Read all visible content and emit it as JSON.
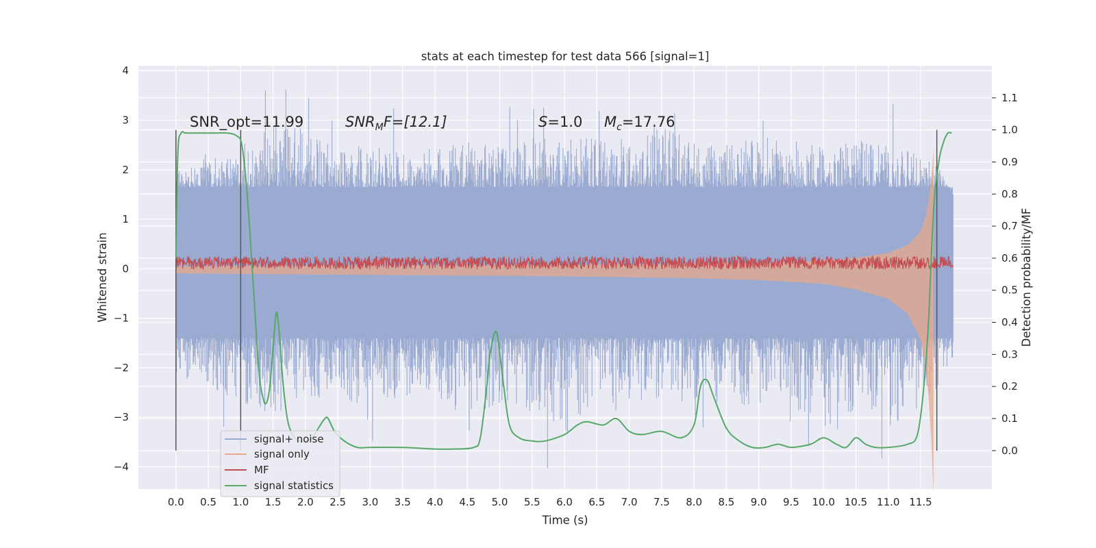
{
  "chart_data": {
    "type": "line",
    "title": "stats at each timestep for test data 566 [signal=1]",
    "xlabel": "Time (s)",
    "ylabel": "Whitened strain",
    "ylabel_right": "Detection probability/MF",
    "xlim": [
      -0.58,
      12.6
    ],
    "ylim": [
      -4.45,
      4.1
    ],
    "ylim_right": [
      -0.12,
      1.2
    ],
    "x_ticks": [
      "0.0",
      "0.5",
      "1.0",
      "1.5",
      "2.0",
      "2.5",
      "3.0",
      "3.5",
      "4.0",
      "4.5",
      "5.0",
      "5.5",
      "6.0",
      "6.5",
      "7.0",
      "7.5",
      "8.0",
      "8.5",
      "9.0",
      "9.5",
      "10.0",
      "10.5",
      "11.0",
      "11.5"
    ],
    "y_ticks": [
      4,
      3,
      2,
      1,
      0,
      -1,
      -2,
      -3,
      -4
    ],
    "y_tick_labels": [
      "4",
      "3",
      "2",
      "1",
      "0",
      "−1",
      "−2",
      "−3",
      "−4"
    ],
    "y_right_ticks": [
      1.1,
      1.0,
      0.9,
      0.8,
      0.7,
      0.6,
      0.5,
      0.4,
      0.3,
      0.2,
      0.1,
      0.0
    ],
    "y_right_tick_labels": [
      "1.1",
      "1.0",
      "0.9",
      "0.8",
      "0.7",
      "0.6",
      "0.5",
      "0.4",
      "0.3",
      "0.2",
      "0.1",
      "0.0"
    ],
    "grid": true,
    "legend_position": "lower-left",
    "annotations": {
      "snr_opt": "SNR_opt=11.99",
      "snr_mf_sym": "SNR",
      "snr_mf_sub": "M",
      "snr_mf_rest": "F=[12.1]",
      "s_sym": "S",
      "s_rest": "=1.0",
      "mc_sym": "M",
      "mc_sub": "c",
      "mc_rest": "=17.76"
    },
    "vertical_markers_x": [
      0.0,
      1.0,
      11.75
    ],
    "series": [
      {
        "name": "signal+ noise",
        "color": "#9aaad0",
        "envelope_x": [
          0.0,
          0.5,
          1.0,
          1.5,
          2.0,
          2.5,
          3.0,
          3.5,
          4.0,
          4.5,
          5.0,
          5.5,
          6.0,
          6.5,
          7.0,
          7.5,
          8.0,
          8.5,
          9.0,
          9.5,
          10.0,
          10.5,
          11.0,
          11.5,
          12.0
        ],
        "envelope_upper": [
          2.0,
          2.3,
          2.2,
          3.0,
          2.8,
          2.4,
          2.5,
          2.3,
          2.5,
          2.6,
          2.5,
          2.7,
          2.6,
          2.7,
          2.6,
          2.9,
          2.6,
          2.5,
          2.7,
          2.6,
          2.5,
          2.6,
          2.5,
          2.7,
          1.5
        ],
        "envelope_lower": [
          -2.2,
          -2.5,
          -2.8,
          -3.0,
          -2.7,
          -2.6,
          -2.9,
          -2.6,
          -2.5,
          -3.3,
          -2.8,
          -2.9,
          -3.4,
          -2.7,
          -2.8,
          -2.6,
          -2.9,
          -2.7,
          -2.8,
          -2.9,
          -3.6,
          -3.0,
          -3.2,
          -2.8,
          -2.0
        ],
        "band_upper": 1.65,
        "band_lower": -1.4
      },
      {
        "name": "signal only",
        "color": "#e6a88e",
        "x": [
          0.0,
          2.0,
          4.0,
          6.0,
          8.0,
          9.0,
          10.0,
          10.5,
          11.0,
          11.3,
          11.5,
          11.6,
          11.65,
          11.7
        ],
        "amplitude": [
          0.05,
          0.06,
          0.07,
          0.08,
          0.1,
          0.12,
          0.16,
          0.22,
          0.32,
          0.48,
          0.75,
          1.15,
          1.6,
          2.4
        ]
      },
      {
        "name": "MF",
        "color": "#c44e52",
        "baseline": 0.12,
        "spread": 0.13
      },
      {
        "name": "signal statistics",
        "color": "#55a868",
        "x": [
          0.0,
          0.03,
          0.08,
          0.15,
          0.25,
          0.4,
          0.6,
          0.8,
          0.95,
          1.02,
          1.1,
          1.2,
          1.28,
          1.35,
          1.4,
          1.45,
          1.5,
          1.55,
          1.6,
          1.65,
          1.72,
          1.8,
          1.9,
          2.0,
          2.1,
          2.2,
          2.3,
          2.35,
          2.45,
          2.6,
          2.8,
          3.0,
          3.5,
          4.0,
          4.3,
          4.6,
          4.7,
          4.8,
          4.85,
          4.95,
          5.05,
          5.15,
          5.3,
          5.5,
          5.7,
          6.0,
          6.2,
          6.35,
          6.6,
          6.8,
          7.0,
          7.2,
          7.5,
          7.8,
          8.0,
          8.1,
          8.2,
          8.3,
          8.5,
          8.7,
          8.9,
          9.1,
          9.3,
          9.5,
          9.8,
          10.0,
          10.2,
          10.35,
          10.5,
          10.65,
          10.8,
          11.0,
          11.3,
          11.45,
          11.55,
          11.62,
          11.7,
          11.78,
          11.85,
          11.92,
          11.98
        ],
        "y": [
          0.6,
          0.93,
          0.99,
          0.99,
          0.99,
          0.99,
          0.99,
          0.99,
          0.98,
          0.95,
          0.8,
          0.5,
          0.25,
          0.16,
          0.15,
          0.2,
          0.32,
          0.43,
          0.36,
          0.22,
          0.1,
          0.05,
          0.03,
          0.03,
          0.04,
          0.07,
          0.1,
          0.1,
          0.06,
          0.03,
          0.01,
          0.01,
          0.01,
          0.005,
          0.005,
          0.01,
          0.04,
          0.2,
          0.3,
          0.37,
          0.22,
          0.08,
          0.04,
          0.03,
          0.03,
          0.05,
          0.08,
          0.09,
          0.08,
          0.1,
          0.06,
          0.05,
          0.06,
          0.04,
          0.08,
          0.2,
          0.22,
          0.17,
          0.07,
          0.03,
          0.01,
          0.01,
          0.02,
          0.01,
          0.02,
          0.04,
          0.02,
          0.01,
          0.04,
          0.02,
          0.01,
          0.01,
          0.02,
          0.05,
          0.2,
          0.4,
          0.75,
          0.9,
          0.96,
          0.99,
          0.99
        ]
      }
    ]
  }
}
